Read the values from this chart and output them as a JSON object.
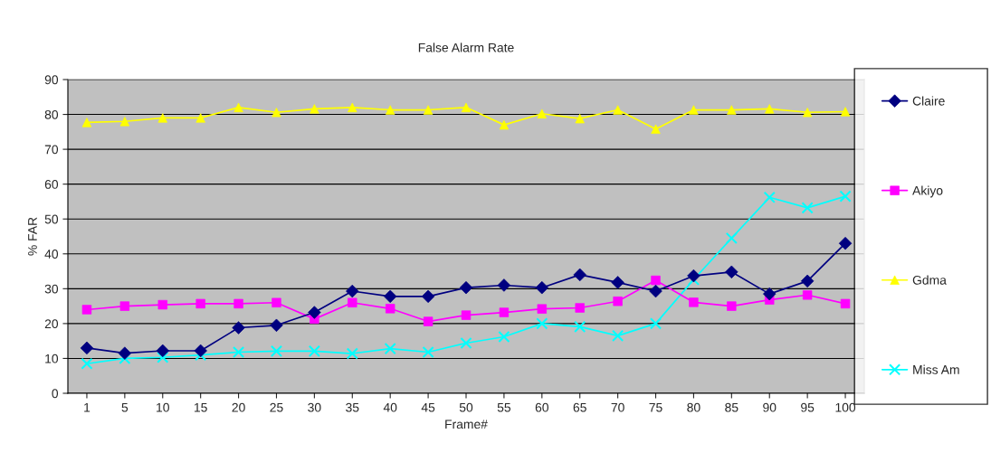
{
  "chart_data": {
    "type": "line",
    "title": "False Alarm Rate",
    "xlabel": "Frame#",
    "ylabel": "% FAR",
    "categories": [
      "1",
      "5",
      "10",
      "15",
      "20",
      "25",
      "30",
      "35",
      "40",
      "45",
      "50",
      "55",
      "60",
      "65",
      "70",
      "75",
      "80",
      "85",
      "90",
      "95",
      "100"
    ],
    "ylim": [
      0,
      90
    ],
    "yticks": [
      0,
      10,
      20,
      30,
      40,
      50,
      60,
      70,
      80,
      90
    ],
    "grid": "y",
    "legend": "right",
    "series": [
      {
        "name": "Claire",
        "color": "#000080",
        "marker": "diamond",
        "values": [
          13,
          11.5,
          12.2,
          12.2,
          18.8,
          19.5,
          23.2,
          29.3,
          27.8,
          27.8,
          30.3,
          31,
          30.3,
          34,
          31.8,
          29.3,
          33.7,
          34.8,
          28.5,
          32.2,
          43
        ]
      },
      {
        "name": "Akiyo",
        "color": "#ff00ff",
        "marker": "square",
        "values": [
          24,
          25,
          25.4,
          25.7,
          25.7,
          26,
          21.3,
          26,
          24.3,
          20.6,
          22.4,
          23.2,
          24.2,
          24.5,
          26.4,
          32.4,
          26.1,
          25,
          26.8,
          28.2,
          25.7
        ]
      },
      {
        "name": "Gdma",
        "color": "#ffff00",
        "marker": "triangle",
        "values": [
          77.7,
          78,
          79,
          79,
          82,
          80.6,
          81.6,
          82,
          81.3,
          81.3,
          82,
          77,
          80.2,
          78.8,
          81.3,
          75.8,
          81.3,
          81.3,
          81.6,
          80.6,
          80.8
        ]
      },
      {
        "name": "Miss Am",
        "color": "#00ffff",
        "marker": "cross",
        "values": [
          8.5,
          10,
          10.3,
          11,
          11.8,
          12.1,
          12.1,
          11.4,
          12.8,
          11.8,
          14.4,
          16.2,
          20,
          19.1,
          16.5,
          20,
          32.6,
          44.5,
          56.2,
          53.2,
          56.5
        ]
      }
    ]
  }
}
